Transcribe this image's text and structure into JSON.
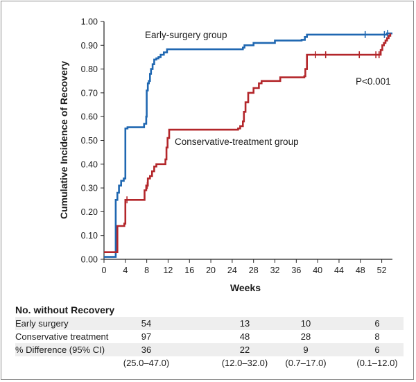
{
  "chart_data": {
    "type": "line",
    "subtype": "cumulative-incidence step curve",
    "xlabel": "Weeks",
    "ylabel": "Cumulative Incidence of Recovery",
    "xlim": [
      0,
      54
    ],
    "ylim": [
      0,
      1.0
    ],
    "xticks": [
      "0",
      "4",
      "8",
      "12",
      "16",
      "20",
      "24",
      "28",
      "32",
      "36",
      "40",
      "44",
      "48",
      "52"
    ],
    "yticks": [
      "0.00",
      "0.10",
      "0.20",
      "0.30",
      "0.40",
      "0.50",
      "0.60",
      "0.70",
      "0.80",
      "0.90",
      "1.00"
    ],
    "annotation": "P<0.001",
    "series": [
      {
        "name": "Early-surgery group",
        "color": "#1f67b1",
        "x": [
          0,
          2,
          2.2,
          2.5,
          2.8,
          3.2,
          3.7,
          4,
          4.4,
          7,
          7.5,
          7.9,
          8,
          8.2,
          8.4,
          8.6,
          8.8,
          9.1,
          9.4,
          9.8,
          10.2,
          10.6,
          11.2,
          11.8,
          25.4,
          26,
          26.3,
          28,
          32,
          37,
          37.6,
          38,
          53,
          54
        ],
        "y": [
          0.01,
          0.01,
          0.25,
          0.28,
          0.31,
          0.33,
          0.34,
          0.55,
          0.555,
          0.555,
          0.57,
          0.6,
          0.71,
          0.74,
          0.75,
          0.78,
          0.8,
          0.82,
          0.84,
          0.845,
          0.85,
          0.86,
          0.87,
          0.883,
          0.883,
          0.89,
          0.9,
          0.91,
          0.92,
          0.923,
          0.935,
          0.945,
          0.95,
          0.95
        ],
        "censored": [
          48.9,
          52.5,
          53.1
        ]
      },
      {
        "name": "Conservative-treatment group",
        "color": "#b3262a",
        "x": [
          0,
          2,
          2.5,
          3.8,
          4,
          7,
          7.6,
          7.9,
          8.2,
          8.6,
          9,
          9.4,
          9.8,
          10.2,
          11.5,
          11.7,
          11.9,
          12.2,
          24.6,
          25.1,
          25.5,
          26,
          26.2,
          26.5,
          27,
          28,
          29,
          29.5,
          33,
          37.5,
          37.7,
          38,
          51.5,
          51.8,
          52.1,
          52.4,
          52.7,
          53,
          53.3,
          53.6
        ],
        "y": [
          0.03,
          0.03,
          0.14,
          0.15,
          0.25,
          0.25,
          0.29,
          0.31,
          0.34,
          0.35,
          0.37,
          0.39,
          0.4,
          0.4,
          0.42,
          0.47,
          0.51,
          0.545,
          0.545,
          0.55,
          0.56,
          0.58,
          0.62,
          0.66,
          0.7,
          0.72,
          0.74,
          0.75,
          0.765,
          0.77,
          0.8,
          0.86,
          0.86,
          0.88,
          0.9,
          0.91,
          0.92,
          0.93,
          0.94,
          0.95
        ],
        "censored": [
          4.3,
          8.1,
          39.6,
          41.5,
          47.8,
          50.9,
          51.5
        ]
      }
    ]
  },
  "risk_table": {
    "title": "No. without Recovery",
    "rows": [
      {
        "label": "Early surgery",
        "values": [
          "54",
          "13",
          "10",
          "6"
        ]
      },
      {
        "label": "Conservative treatment",
        "values": [
          "97",
          "48",
          "28",
          "8"
        ]
      },
      {
        "label": "% Difference (95% CI)",
        "values": [
          "36",
          "22",
          "9",
          "6"
        ]
      },
      {
        "label": "",
        "values": [
          "(25.0–47.0)",
          "(12.0–32.0)",
          "(0.7–17.0)",
          "(0.1–12.0)"
        ]
      }
    ]
  }
}
